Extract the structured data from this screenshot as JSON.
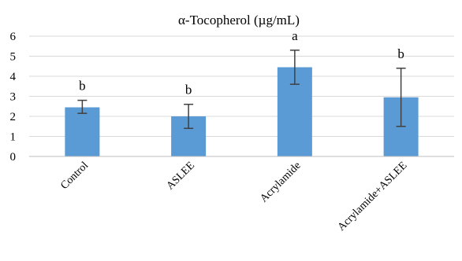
{
  "chart_data": {
    "type": "bar",
    "title": "α-Tocopherol (µg/mL)",
    "categories": [
      "Control",
      "ASLEE",
      "Acrylamide",
      "Acrylamide+ASLEE"
    ],
    "values": [
      2.45,
      2.0,
      4.45,
      2.95
    ],
    "error_low": [
      2.15,
      1.4,
      3.6,
      1.5
    ],
    "error_high": [
      2.8,
      2.6,
      5.3,
      4.4
    ],
    "significance_labels": [
      "b",
      "b",
      "a",
      "b"
    ],
    "yticks": [
      "0",
      "1",
      "2",
      "3",
      "4",
      "5",
      "6"
    ],
    "ylim": [
      0,
      6
    ],
    "grid": true,
    "bar_color": "#5b9bd5",
    "error_color": "#404040"
  }
}
